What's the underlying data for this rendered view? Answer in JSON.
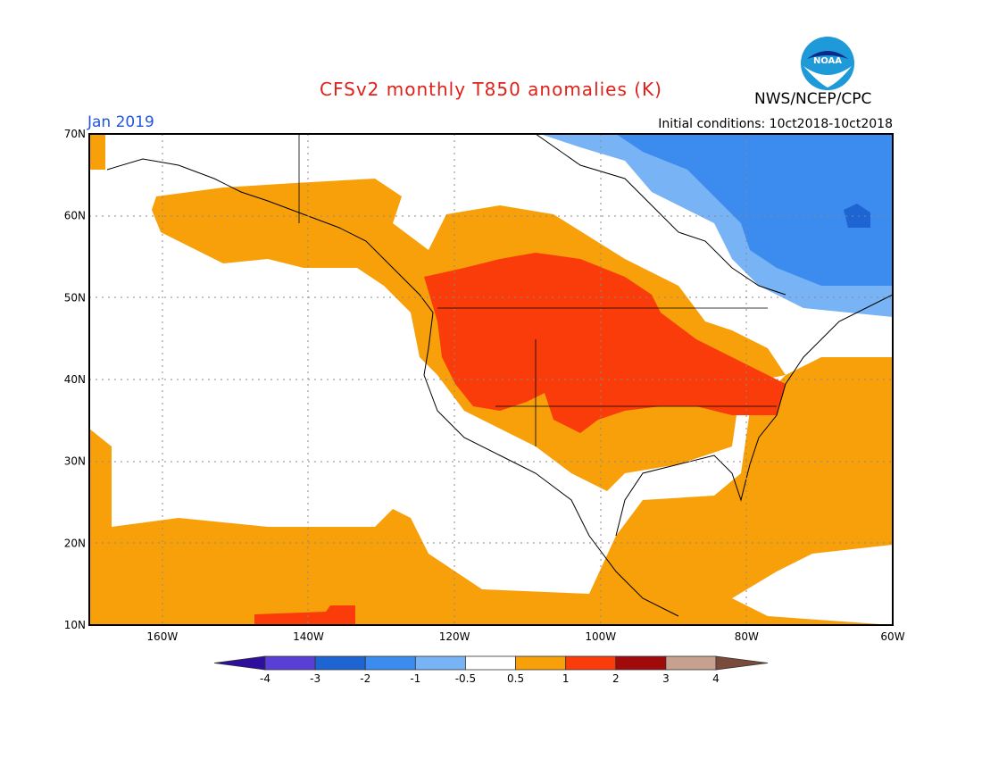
{
  "header": {
    "title": "CFSv2 monthly T850 anomalies (K)",
    "agency": "NWS/NCEP/CPC",
    "month": "Jan 2019",
    "initial_conditions": "Initial conditions: 10ct2018-10ct2018",
    "logo_text": "NOAA",
    "title_color": "#e0201a",
    "month_color": "#2255dd"
  },
  "map": {
    "lon_range": [
      -170,
      -60
    ],
    "lat_range": [
      10,
      70
    ],
    "lat_ticks": [
      "70N",
      "60N",
      "50N",
      "40N",
      "30N",
      "20N",
      "10N"
    ],
    "lon_ticks": [
      "160W",
      "140W",
      "120W",
      "100W",
      "80W",
      "60W"
    ],
    "grid": "dotted"
  },
  "legend": {
    "bins": [
      {
        "color": "#2e0e9c"
      },
      {
        "color": "#5a3fd6"
      },
      {
        "color": "#1e64d2"
      },
      {
        "color": "#3c8cf0"
      },
      {
        "color": "#78b4f5"
      },
      {
        "color": "#ffffff"
      },
      {
        "color": "#f7a00a"
      },
      {
        "color": "#fa3c0a"
      },
      {
        "color": "#a00a0a"
      },
      {
        "color": "#c8a090"
      },
      {
        "color": "#7a4a3a"
      }
    ],
    "labels": [
      "-4",
      "-3",
      "-2",
      "-1",
      "-0.5",
      "0.5",
      "1",
      "2",
      "3",
      "4"
    ]
  }
}
